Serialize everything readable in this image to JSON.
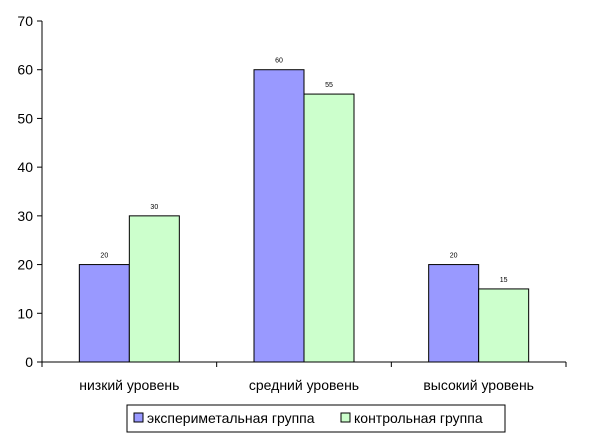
{
  "chart_data": {
    "type": "bar",
    "title": "",
    "xlabel": "",
    "ylabel": "",
    "categories": [
      "низкий уровень",
      "средний уровень",
      "высокий уровень"
    ],
    "series": [
      {
        "name": "экспериметальная группа",
        "values": [
          20,
          60,
          20
        ],
        "color": "#9999ff"
      },
      {
        "name": "контрольная группа",
        "values": [
          30,
          55,
          15
        ],
        "color": "#ccffcc"
      }
    ],
    "ylim": [
      0,
      70
    ],
    "yticks": [
      0,
      10,
      20,
      30,
      40,
      50,
      60,
      70
    ],
    "grid": false,
    "legend_position": "bottom",
    "border_color": "#000000"
  }
}
